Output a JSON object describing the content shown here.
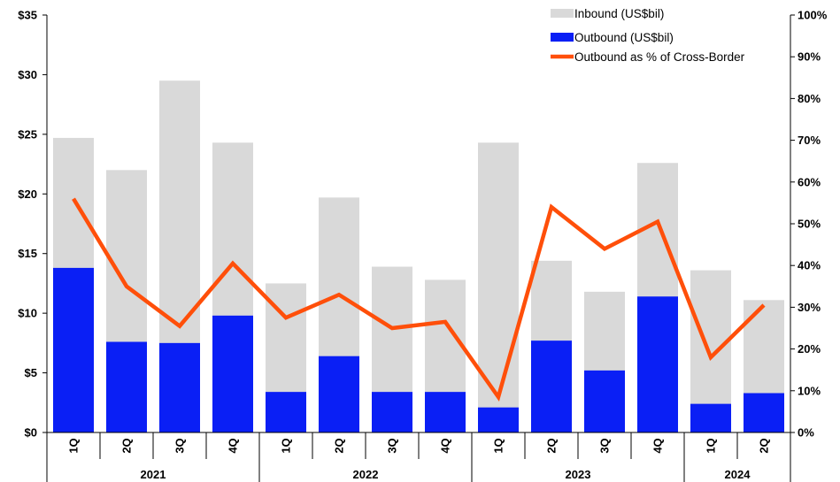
{
  "chart_data": {
    "type": "bar",
    "categories": [
      "1Q",
      "2Q",
      "3Q",
      "4Q",
      "1Q",
      "2Q",
      "3Q",
      "4Q",
      "1Q",
      "2Q",
      "3Q",
      "4Q",
      "1Q",
      "2Q"
    ],
    "groups": [
      {
        "label": "2021",
        "count": 4
      },
      {
        "label": "2022",
        "count": 4
      },
      {
        "label": "2023",
        "count": 4
      },
      {
        "label": "2024",
        "count": 2
      }
    ],
    "series": [
      {
        "name": "Inbound (US$bil)",
        "kind": "bar",
        "axis": "left",
        "color": "#d9d9d9",
        "values": [
          24.7,
          22.0,
          29.5,
          24.3,
          12.5,
          19.7,
          13.9,
          12.8,
          24.3,
          14.4,
          11.8,
          22.6,
          13.6,
          11.1
        ]
      },
      {
        "name": "Outbound (US$bil)",
        "kind": "bar",
        "axis": "left",
        "color": "#0a1ff5",
        "values": [
          13.8,
          7.6,
          7.5,
          9.8,
          3.4,
          6.4,
          3.4,
          3.4,
          2.1,
          7.7,
          5.2,
          11.4,
          2.4,
          3.3
        ]
      },
      {
        "name": "Outbound as % of Cross-Border",
        "kind": "line",
        "axis": "right",
        "color": "#ff4f0a",
        "values": [
          56,
          35,
          25.5,
          40.5,
          27.5,
          33,
          25,
          26.5,
          8.5,
          54,
          44,
          50.5,
          18,
          30.5
        ]
      }
    ],
    "y_left": {
      "min": 0,
      "max": 35,
      "ticks": [
        "$0",
        "$5",
        "$10",
        "$15",
        "$20",
        "$25",
        "$30",
        "$35"
      ]
    },
    "y_right": {
      "min": 0,
      "max": 100,
      "ticks": [
        "0%",
        "10%",
        "20%",
        "30%",
        "40%",
        "50%",
        "60%",
        "70%",
        "80%",
        "90%",
        "100%"
      ]
    },
    "legend_position": "top-right",
    "grid": false
  }
}
